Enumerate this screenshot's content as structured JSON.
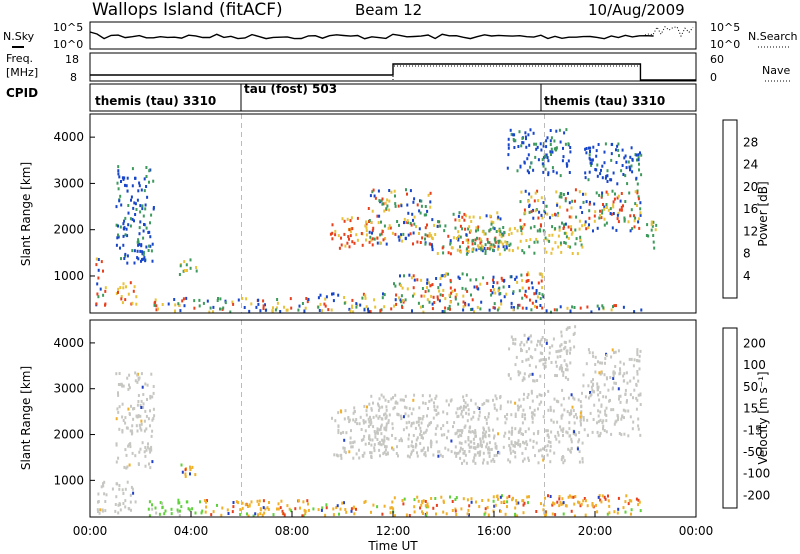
{
  "header": {
    "station": "Wallops Island (fitACF)",
    "beam": "Beam 12",
    "date": "10/Aug/2009"
  },
  "strip_panels": {
    "sky_label": "N.Sky",
    "sky_ticks": [
      "10^5",
      "10^0"
    ],
    "search_label": "N.Search",
    "search_ticks": [
      "10^5",
      "10^0"
    ],
    "freq_label_line1": "Freq.",
    "freq_label_line2": "[MHz]",
    "freq_ticks": [
      "18",
      "8"
    ],
    "nave_label": "Nave",
    "nave_ticks": [
      "60",
      "0"
    ],
    "cpid_label": "CPID",
    "cpid_modes": [
      "themis (tau) 3310",
      "tau (fost) 503",
      "themis (tau) 3310"
    ]
  },
  "chart_data": [
    {
      "type": "heatmap",
      "name": "power",
      "ylabel": "Slant Range [km]",
      "yticks": [
        "1000",
        "2000",
        "3000",
        "4000"
      ],
      "ylim": [
        200,
        4500
      ],
      "xlim": [
        0,
        24
      ],
      "colorbar_label": "Power [dB]",
      "colorbar_ticks": [
        "4",
        "8",
        "12",
        "16",
        "20",
        "24",
        "28"
      ],
      "colorbar_colors": [
        "#0018e8",
        "#1a5ac0",
        "#2f8b6d",
        "#5ab34a",
        "#b8cf3a",
        "#f5a623",
        "#f07a1e",
        "#e8441a",
        "#e00000"
      ],
      "colors": {
        "low": "#1846c8",
        "mid": "#3d9a5c",
        "high": "#e8c23a",
        "very_high": "#e8401c"
      },
      "regions": [
        {
          "t": [
            0.2,
            0.6
          ],
          "r": [
            300,
            1400
          ],
          "level": "mix"
        },
        {
          "t": [
            0.9,
            1.8
          ],
          "r": [
            400,
            900
          ],
          "level": "very_high"
        },
        {
          "t": [
            1.0,
            2.5
          ],
          "r": [
            1300,
            3400
          ],
          "level": "low"
        },
        {
          "t": [
            3.5,
            4.2
          ],
          "r": [
            1000,
            1400
          ],
          "level": "mid"
        },
        {
          "t": [
            2.5,
            9.0
          ],
          "r": [
            250,
            550
          ],
          "level": "mix"
        },
        {
          "t": [
            9.0,
            12.0
          ],
          "r": [
            250,
            650
          ],
          "level": "mix"
        },
        {
          "t": [
            9.5,
            11.2
          ],
          "r": [
            1600,
            2300
          ],
          "level": "very_high"
        },
        {
          "t": [
            11.0,
            13.5
          ],
          "r": [
            1700,
            2900
          ],
          "level": "mix"
        },
        {
          "t": [
            13.5,
            16.5
          ],
          "r": [
            1500,
            2400
          ],
          "level": "mix"
        },
        {
          "t": [
            14.5,
            19.5
          ],
          "r": [
            1500,
            2100
          ],
          "level": "high"
        },
        {
          "t": [
            17.0,
            21.8
          ],
          "r": [
            2000,
            2900
          ],
          "level": "mix"
        },
        {
          "t": [
            19.5,
            21.8
          ],
          "r": [
            3000,
            3900
          ],
          "level": "low"
        },
        {
          "t": [
            12.0,
            18.0
          ],
          "r": [
            250,
            1100
          ],
          "level": "mix"
        },
        {
          "t": [
            16.5,
            19.0
          ],
          "r": [
            3200,
            4200
          ],
          "level": "low"
        },
        {
          "t": [
            18.0,
            21.8
          ],
          "r": [
            250,
            400
          ],
          "level": "mix"
        },
        {
          "t": [
            22.0,
            22.5
          ],
          "r": [
            1600,
            2200
          ],
          "level": "mid"
        }
      ]
    },
    {
      "type": "heatmap",
      "name": "velocity",
      "ylabel": "Slant Range [km]",
      "yticks": [
        "1000",
        "2000",
        "3000",
        "4000"
      ],
      "ylim": [
        200,
        4500
      ],
      "xlim": [
        0,
        24
      ],
      "xlabel": "Time UT",
      "xticks": [
        "00:00",
        "04:00",
        "08:00",
        "12:00",
        "16:00",
        "20:00",
        "00:00"
      ],
      "colorbar_label": "Velocity [m s⁻¹]",
      "colorbar_ticks": [
        "200",
        "100",
        "50",
        "15",
        "-15",
        "-50",
        "-100",
        "-200"
      ],
      "colorbar_colors": [
        "#1a2fc8",
        "#1f6f8f",
        "#2a8a5a",
        "#5fd13a",
        "#c8c8c8",
        "#f0d23a",
        "#f5a623",
        "#f06a1e",
        "#e00000"
      ],
      "colors": {
        "ground": "#c6c6c2",
        "pos": "#5fd13a",
        "neg": "#f0b02a",
        "strong_neg": "#e8401c",
        "strong_pos": "#2040c8"
      },
      "regions": [
        {
          "t": [
            0.2,
            1.8
          ],
          "r": [
            300,
            1000
          ],
          "level": "ground"
        },
        {
          "t": [
            1.0,
            2.5
          ],
          "r": [
            1300,
            3400
          ],
          "level": "ground"
        },
        {
          "t": [
            3.5,
            4.2
          ],
          "r": [
            1000,
            1400
          ],
          "level": "neg"
        },
        {
          "t": [
            2.2,
            4.5
          ],
          "r": [
            250,
            600
          ],
          "level": "pos"
        },
        {
          "t": [
            4.5,
            12.0
          ],
          "r": [
            250,
            600
          ],
          "level": "neg"
        },
        {
          "t": [
            9.5,
            11.8
          ],
          "r": [
            1500,
            2700
          ],
          "level": "ground"
        },
        {
          "t": [
            11.0,
            17.0
          ],
          "r": [
            1500,
            2900
          ],
          "level": "ground"
        },
        {
          "t": [
            14.5,
            19.5
          ],
          "r": [
            1400,
            2100
          ],
          "level": "ground"
        },
        {
          "t": [
            17.0,
            21.8
          ],
          "r": [
            2000,
            3000
          ],
          "level": "ground"
        },
        {
          "t": [
            19.5,
            21.8
          ],
          "r": [
            3000,
            3900
          ],
          "level": "ground"
        },
        {
          "t": [
            12.0,
            21.8
          ],
          "r": [
            250,
            700
          ],
          "level": "neg"
        },
        {
          "t": [
            16.5,
            19.0
          ],
          "r": [
            3200,
            4200
          ],
          "level": "ground"
        },
        {
          "t": [
            18.5,
            19.2
          ],
          "r": [
            3800,
            4400
          ],
          "level": "ground"
        }
      ]
    }
  ]
}
